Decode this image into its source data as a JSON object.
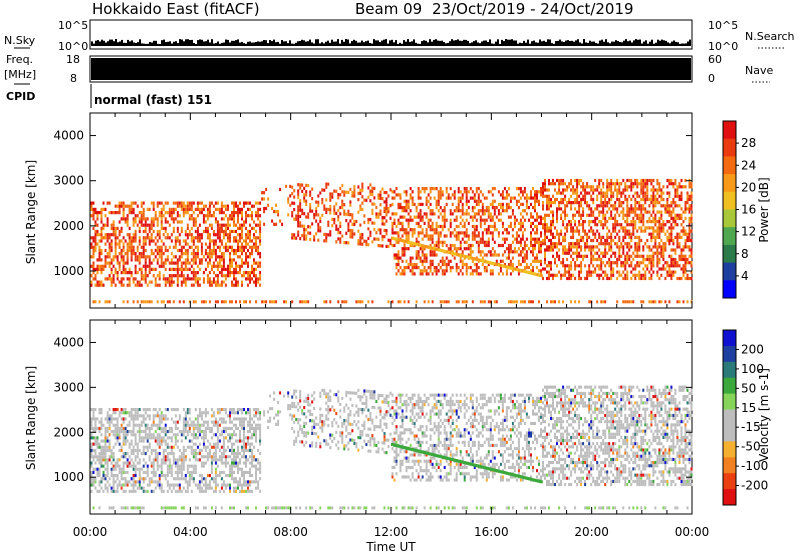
{
  "header": {
    "title": "Hokkaido East (fitACF)",
    "beam": "Beam 09",
    "date_range": "23/Oct/2019 - 24/Oct/2019"
  },
  "status_panels": {
    "nsky_label": "N.Sky",
    "nsky_tick_top": "10^5",
    "nsky_tick_bottom": "10^0",
    "nsky_right_top": "10^5",
    "nsky_right_bottom": "10^0",
    "nsearch_label": "N.Search",
    "freq_label": "Freq.",
    "freq_unit": "[MHz]",
    "freq_tick_top": "18",
    "freq_tick_bottom": "8",
    "nave_tick_top": "60",
    "nave_tick_bottom": "0",
    "nave_label": "Nave",
    "cpid_label": "CPID",
    "cpid_value": "normal (fast) 151"
  },
  "chart_data": [
    {
      "type": "heatmap",
      "name": "power",
      "ylabel": "Slant Range [km]",
      "colorbar_label": "Power [dB]",
      "ylim": [
        180,
        4500
      ],
      "yticks": [
        1000,
        2000,
        3000,
        4000
      ],
      "colorbar_ticks": [
        "28",
        "24",
        "20",
        "16",
        "12",
        "8",
        "4"
      ],
      "colors": [
        "#0000ff",
        "#1f3fa0",
        "#2a7a4a",
        "#4fa84f",
        "#a8c83a",
        "#f0c020",
        "#f89a18",
        "#f36a10",
        "#ea3a10",
        "#e01010"
      ],
      "xticks": [
        "00:00",
        "04:00",
        "08:00",
        "12:00",
        "16:00",
        "20:00",
        "00:00"
      ],
      "xlim_hours": [
        0,
        24
      ]
    },
    {
      "type": "heatmap",
      "name": "velocity",
      "ylabel": "Slant Range [km]",
      "colorbar_label": "Velocity [m s-1]",
      "ylim": [
        180,
        4500
      ],
      "yticks": [
        1000,
        2000,
        3000,
        4000
      ],
      "colorbar_ticks": [
        "200",
        "100",
        "50",
        "15",
        "-15",
        "-50",
        "-100",
        "-200"
      ],
      "colors": [
        "#e01010",
        "#ea4010",
        "#f08020",
        "#f5b030",
        "#bdbdbd",
        "#bdbdbd",
        "#86d45a",
        "#3aa83a",
        "#2a7a7a",
        "#1f3fa0",
        "#1010d0"
      ],
      "xticks": [
        "00:00",
        "04:00",
        "08:00",
        "12:00",
        "16:00",
        "20:00",
        "00:00"
      ],
      "xlabel": "Time UT",
      "xlim_hours": [
        0,
        24
      ]
    }
  ]
}
